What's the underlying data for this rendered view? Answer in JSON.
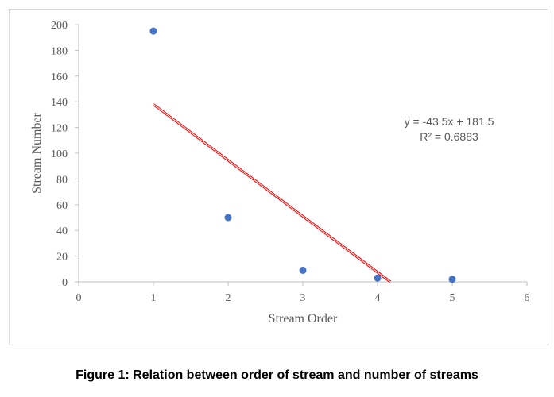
{
  "chart_data": {
    "type": "scatter",
    "title": "",
    "xlabel": "Stream Order",
    "ylabel": "Stream Number",
    "x": [
      1,
      2,
      3,
      4,
      5
    ],
    "y": [
      195,
      50,
      9,
      3,
      2
    ],
    "xlim": [
      0,
      6
    ],
    "ylim": [
      0,
      200
    ],
    "xticks": [
      0,
      1,
      2,
      3,
      4,
      5,
      6
    ],
    "yticks": [
      0,
      20,
      40,
      60,
      80,
      100,
      120,
      140,
      160,
      180,
      200
    ],
    "grid": false,
    "trendline": {
      "type": "linear",
      "slope": -43.5,
      "intercept": 181.5,
      "x_start": 1,
      "equation": "y = -43.5x + 181.5",
      "r2_label": "R² = 0.6883",
      "color": "#ff0000"
    },
    "marker_color": "#4472c4"
  },
  "caption": "Figure 1: Relation between order of stream and number of streams"
}
